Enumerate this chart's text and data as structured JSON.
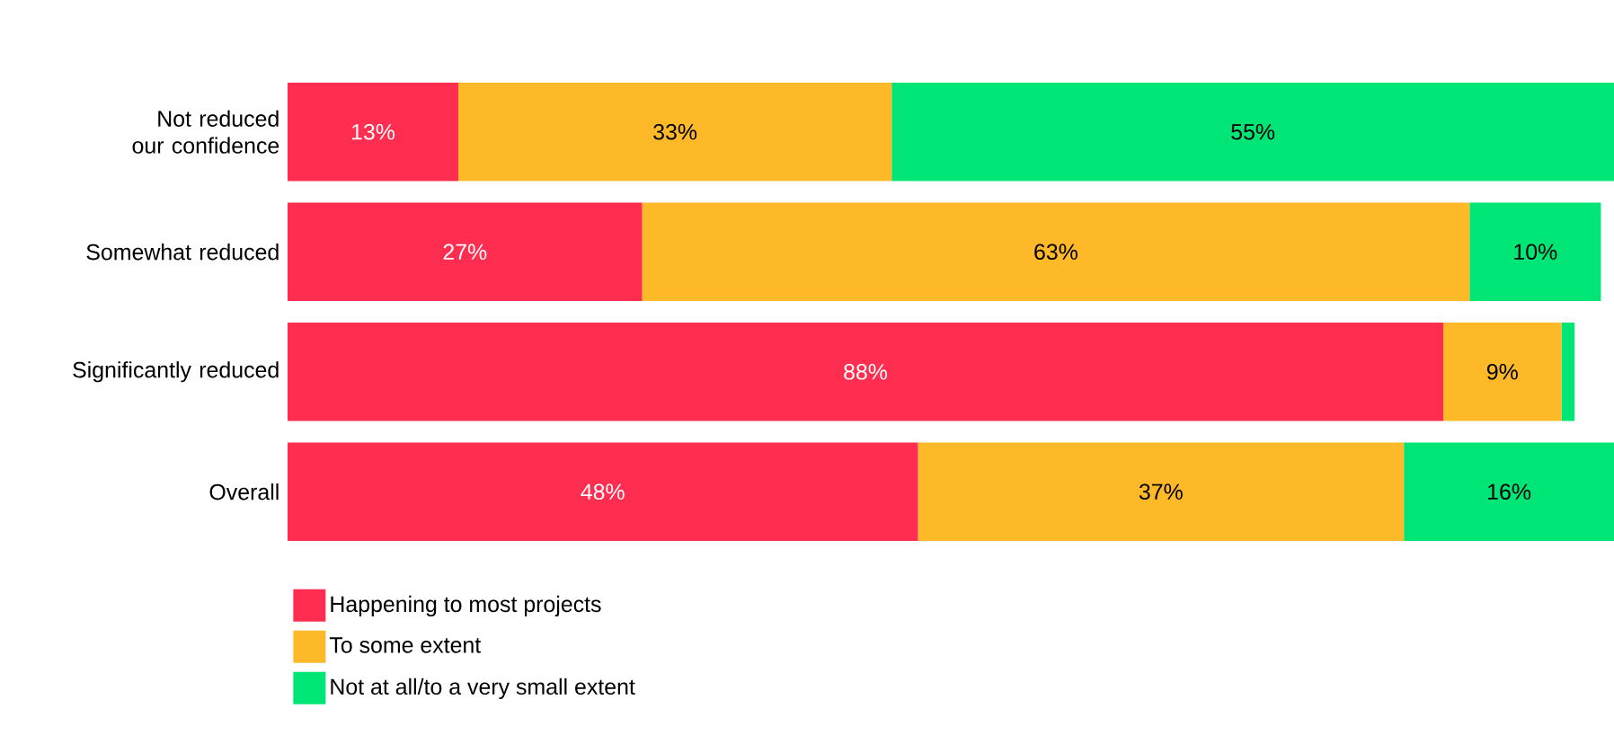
{
  "chart_data": {
    "type": "bar",
    "orientation": "horizontal",
    "stacked": true,
    "legend": "bottom left",
    "categories": [
      "Not reduced our confidence",
      "Somewhat reduced",
      "Significantly reduced",
      "Overall"
    ],
    "series": [
      {
        "name": "Happening to most projects",
        "color": "#ff2d4f",
        "values": [
          13,
          27,
          88,
          48
        ],
        "value_labels": [
          "13%",
          "27%",
          "88%",
          "48%"
        ]
      },
      {
        "name": "To some extent",
        "color": "#fdb927",
        "values": [
          33,
          63,
          9,
          37
        ],
        "value_labels": [
          "33%",
          "63%",
          "9%",
          "37%"
        ]
      },
      {
        "name": "Not at all/to a very small extent",
        "color": "#00e676",
        "values": [
          55,
          10,
          1,
          16
        ],
        "value_labels": [
          "55%",
          "10%",
          null,
          "16%"
        ]
      }
    ]
  }
}
